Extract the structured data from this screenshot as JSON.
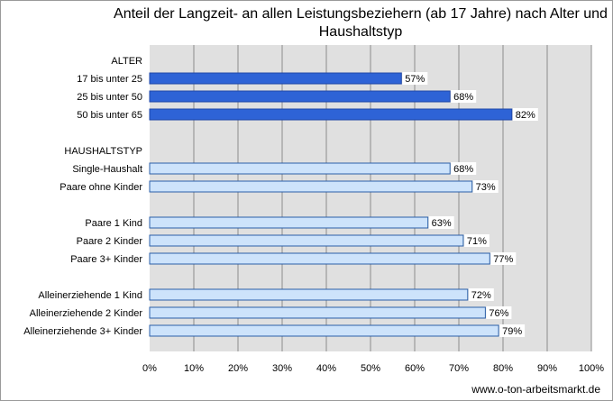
{
  "chart_data": {
    "type": "bar",
    "orientation": "horizontal",
    "title": "Anteil der Langzeit- an allen Leistungsbeziehern (ab 17 Jahre) nach Alter und Haushaltstyp",
    "xlim": [
      0,
      100
    ],
    "x_ticks": [
      "0%",
      "10%",
      "20%",
      "30%",
      "40%",
      "50%",
      "60%",
      "70%",
      "80%",
      "90%",
      "100%"
    ],
    "grid": true,
    "rows": [
      {
        "kind": "group",
        "label": "ALTER"
      },
      {
        "kind": "bar",
        "label": "17 bis unter 25",
        "value": 57,
        "value_label": "57%",
        "series": "alter"
      },
      {
        "kind": "bar",
        "label": "25 bis unter 50",
        "value": 68,
        "value_label": "68%",
        "series": "alter"
      },
      {
        "kind": "bar",
        "label": "50 bis unter 65",
        "value": 82,
        "value_label": "82%",
        "series": "alter"
      },
      {
        "kind": "spacer"
      },
      {
        "kind": "group",
        "label": "HAUSHALTSTYP"
      },
      {
        "kind": "bar",
        "label": "Single-Haushalt",
        "value": 68,
        "value_label": "68%",
        "series": "haushalt"
      },
      {
        "kind": "bar",
        "label": "Paare ohne Kinder",
        "value": 73,
        "value_label": "73%",
        "series": "haushalt"
      },
      {
        "kind": "spacer"
      },
      {
        "kind": "bar",
        "label": "Paare 1 Kind",
        "value": 63,
        "value_label": "63%",
        "series": "haushalt"
      },
      {
        "kind": "bar",
        "label": "Paare 2 Kinder",
        "value": 71,
        "value_label": "71%",
        "series": "haushalt"
      },
      {
        "kind": "bar",
        "label": "Paare 3+ Kinder",
        "value": 77,
        "value_label": "77%",
        "series": "haushalt"
      },
      {
        "kind": "spacer"
      },
      {
        "kind": "bar",
        "label": "Alleinerziehende 1 Kind",
        "value": 72,
        "value_label": "72%",
        "series": "haushalt"
      },
      {
        "kind": "bar",
        "label": "Alleinerziehende 2 Kinder",
        "value": 76,
        "value_label": "76%",
        "series": "haushalt"
      },
      {
        "kind": "bar",
        "label": "Alleinerziehende 3+ Kinder",
        "value": 79,
        "value_label": "79%",
        "series": "haushalt"
      }
    ],
    "colors": {
      "alter_fill": "#2e63d6",
      "alter_stroke": "#1f47a8",
      "haushalt_fill": "#cde3fb",
      "haushalt_stroke": "#2b5fa8",
      "plot_bg": "#e0e0e0",
      "grid": "#8c8c8c"
    }
  },
  "source": "www.o-ton-arbeitsmarkt.de"
}
